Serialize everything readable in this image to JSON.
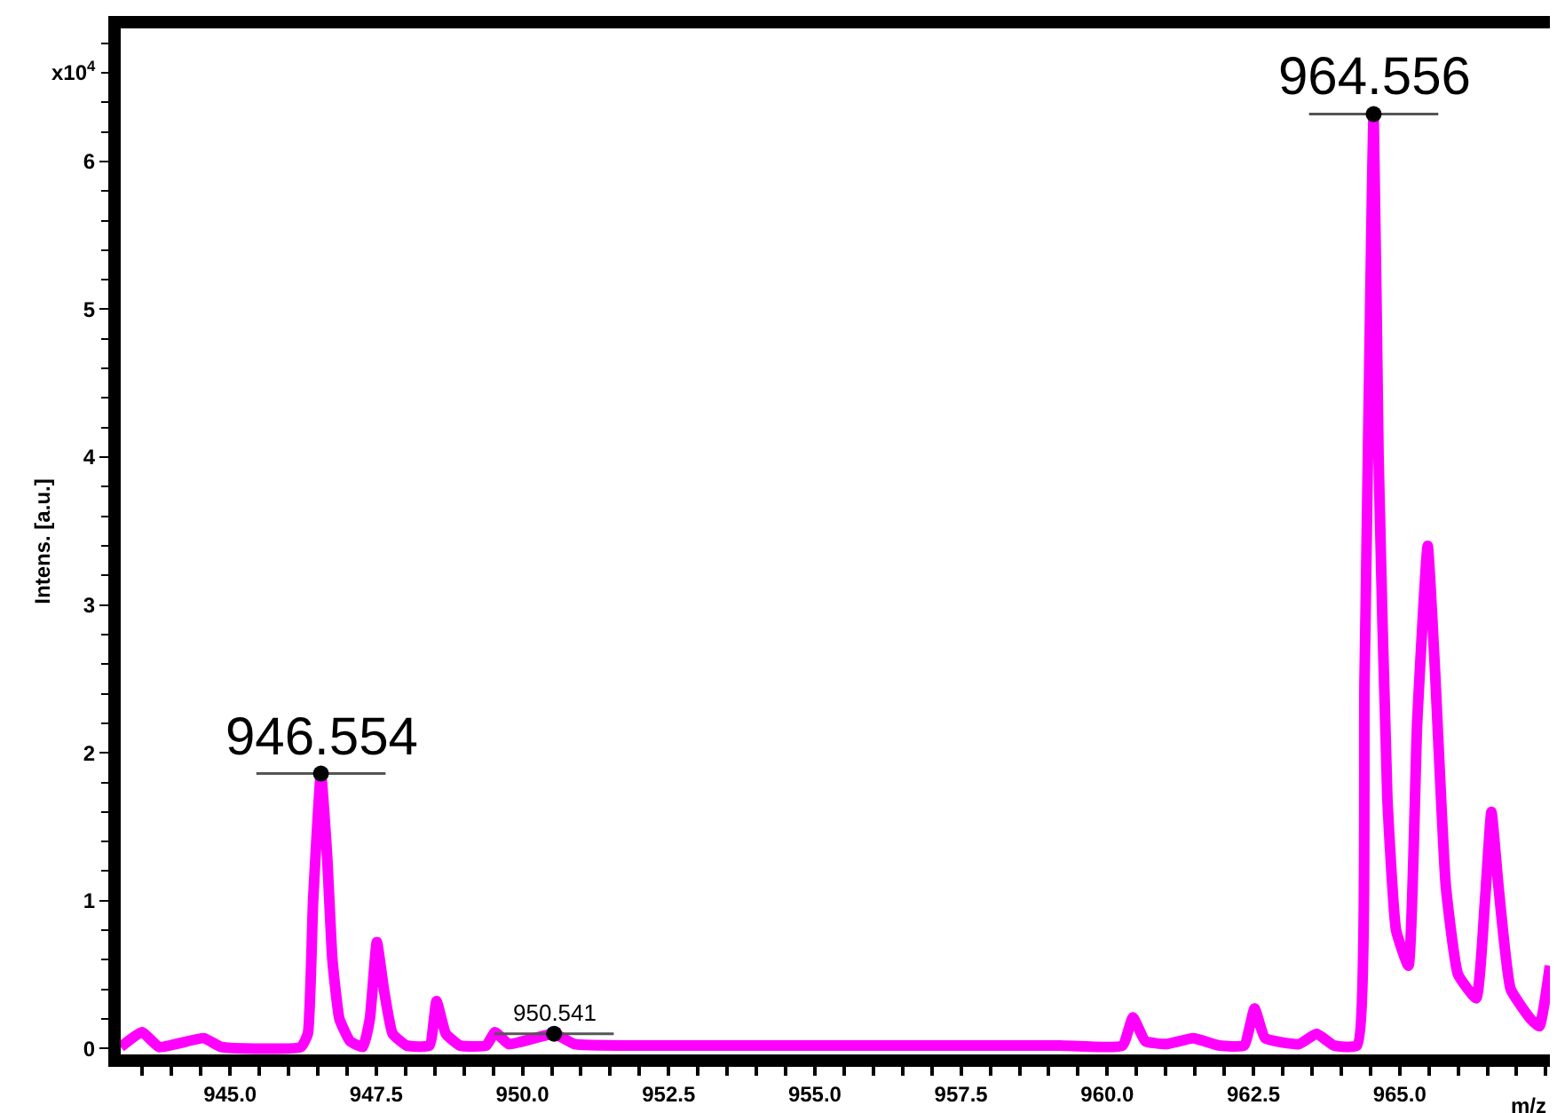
{
  "chart_data": {
    "type": "line",
    "xlabel": "m/z",
    "ylabel": "Intens. [a.u.]",
    "x": [
      943.13,
      943.49,
      943.79,
      944.55,
      944.85,
      946.21,
      946.33,
      946.42,
      946.554,
      946.66,
      946.75,
      946.87,
      947.05,
      947.27,
      947.39,
      947.51,
      947.63,
      947.78,
      948.02,
      948.41,
      948.53,
      948.69,
      948.93,
      949.38,
      949.53,
      949.77,
      950.541,
      950.89,
      951.95,
      953.16,
      954.67,
      956.18,
      957.69,
      959.2,
      960.26,
      960.44,
      960.65,
      961.01,
      961.47,
      961.92,
      962.34,
      962.52,
      962.7,
      963.28,
      963.58,
      963.88,
      964.27,
      964.4,
      964.556,
      964.64,
      964.79,
      964.94,
      965.15,
      965.3,
      965.48,
      965.6,
      965.79,
      966.0,
      966.31,
      966.46,
      966.57,
      966.69,
      966.9,
      967.24,
      967.39,
      967.57
    ],
    "series": [
      {
        "color": "#ff00ff",
        "values": [
          0.01,
          0.11,
          0.01,
          0.07,
          0.01,
          0.01,
          0.1,
          1.0,
          1.86,
          1.3,
          0.6,
          0.2,
          0.05,
          0.01,
          0.2,
          0.72,
          0.4,
          0.1,
          0.02,
          0.02,
          0.32,
          0.1,
          0.02,
          0.02,
          0.11,
          0.03,
          0.1,
          0.03,
          0.02,
          0.02,
          0.02,
          0.02,
          0.02,
          0.02,
          0.02,
          0.21,
          0.05,
          0.03,
          0.07,
          0.02,
          0.02,
          0.27,
          0.07,
          0.03,
          0.1,
          0.02,
          0.02,
          2.5,
          6.32,
          4.0,
          1.7,
          0.8,
          0.56,
          2.2,
          3.4,
          2.6,
          1.1,
          0.5,
          0.34,
          1.0,
          1.6,
          1.1,
          0.4,
          0.2,
          0.15,
          0.56
        ]
      }
    ],
    "xlim": [
      943.13,
      967.57
    ],
    "ylim": [
      -0.04,
      6.9
    ],
    "xticks": [
      {
        "value": 945,
        "label": "945.0"
      },
      {
        "value": 947.5,
        "label": "947.5"
      },
      {
        "value": 950,
        "label": "950.0"
      },
      {
        "value": 952.5,
        "label": "952.5"
      },
      {
        "value": 955,
        "label": "955.0"
      },
      {
        "value": 957.5,
        "label": "957.5"
      },
      {
        "value": 960,
        "label": "960.0"
      },
      {
        "value": 962.5,
        "label": "962.5"
      },
      {
        "value": 965,
        "label": "965.0"
      }
    ],
    "yticks": [
      0,
      1,
      2,
      3,
      4,
      5,
      6
    ],
    "annotations": [
      {
        "text": "946.554",
        "x": 946.554,
        "y": 1.86
      },
      {
        "text": "964.556",
        "x": 964.556,
        "y": 6.32
      },
      {
        "text": "950.541",
        "x": 950.541,
        "y": 0.1
      },
      "x10$^{4}$"
    ],
    "marker": "none",
    "line_style": "solid"
  }
}
